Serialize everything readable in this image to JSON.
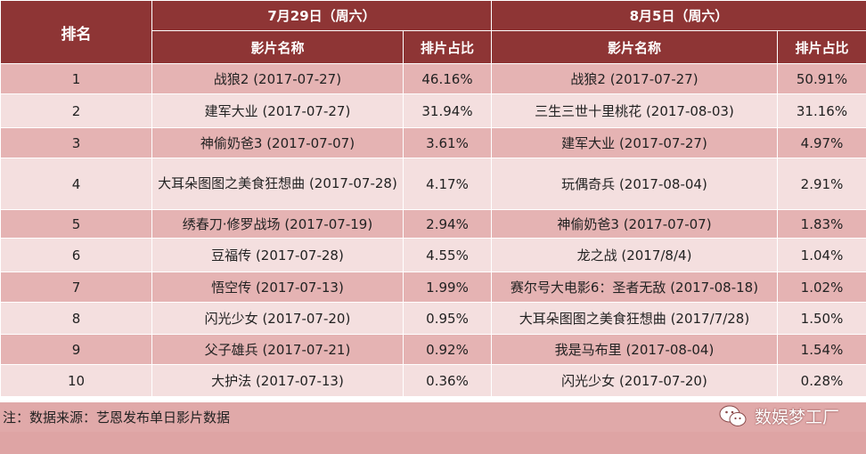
{
  "header": {
    "rank_label": "排名",
    "date1": "7月29日（周六）",
    "date2": "8月5日（周六）",
    "film_label": "影片名称",
    "share_label": "排片占比"
  },
  "rows": [
    {
      "rank": "1",
      "film1": "战狼2 (2017-07-27)",
      "share1": "46.16%",
      "film2": "战狼2 (2017-07-27)",
      "share2": "50.91%"
    },
    {
      "rank": "2",
      "film1": "建军大业 (2017-07-27)",
      "share1": "31.94%",
      "film2": "三生三世十里桃花 (2017-08-03)",
      "share2": "31.16%"
    },
    {
      "rank": "3",
      "film1": "神偷奶爸3 (2017-07-07)",
      "share1": "3.61%",
      "film2": "建军大业 (2017-07-27)",
      "share2": "4.97%"
    },
    {
      "rank": "4",
      "film1": "大耳朵图图之美食狂想曲 (2017-07-28)",
      "share1": "4.17%",
      "film2": "玩偶奇兵 (2017-08-04)",
      "share2": "2.91%"
    },
    {
      "rank": "5",
      "film1": "绣春刀·修罗战场 (2017-07-19)",
      "share1": "2.94%",
      "film2": "神偷奶爸3 (2017-07-07)",
      "share2": "1.83%"
    },
    {
      "rank": "6",
      "film1": "豆福传 (2017-07-28)",
      "share1": "4.55%",
      "film2": "龙之战 (2017/8/4)",
      "share2": "1.04%"
    },
    {
      "rank": "7",
      "film1": "悟空传 (2017-07-13)",
      "share1": "1.99%",
      "film2": "赛尔号大电影6：圣者无敌 (2017-08-18)",
      "share2": "1.02%"
    },
    {
      "rank": "8",
      "film1": "闪光少女 (2017-07-20)",
      "share1": "0.95%",
      "film2": "大耳朵图图之美食狂想曲 (2017/7/28)",
      "share2": "1.50%"
    },
    {
      "rank": "9",
      "film1": "父子雄兵 (2017-07-21)",
      "share1": "0.92%",
      "film2": "我是马布里 (2017-08-04)",
      "share2": "1.54%"
    },
    {
      "rank": "10",
      "film1": "大护法 (2017-07-13)",
      "share1": "0.36%",
      "film2": "闪光少女 (2017-07-20)",
      "share2": "0.28%"
    }
  ],
  "footer": {
    "note": "注：数据来源：艺恩发布单日影片数据",
    "brand": "数娱梦工厂",
    "brand_icon": "wechat-icon"
  }
}
